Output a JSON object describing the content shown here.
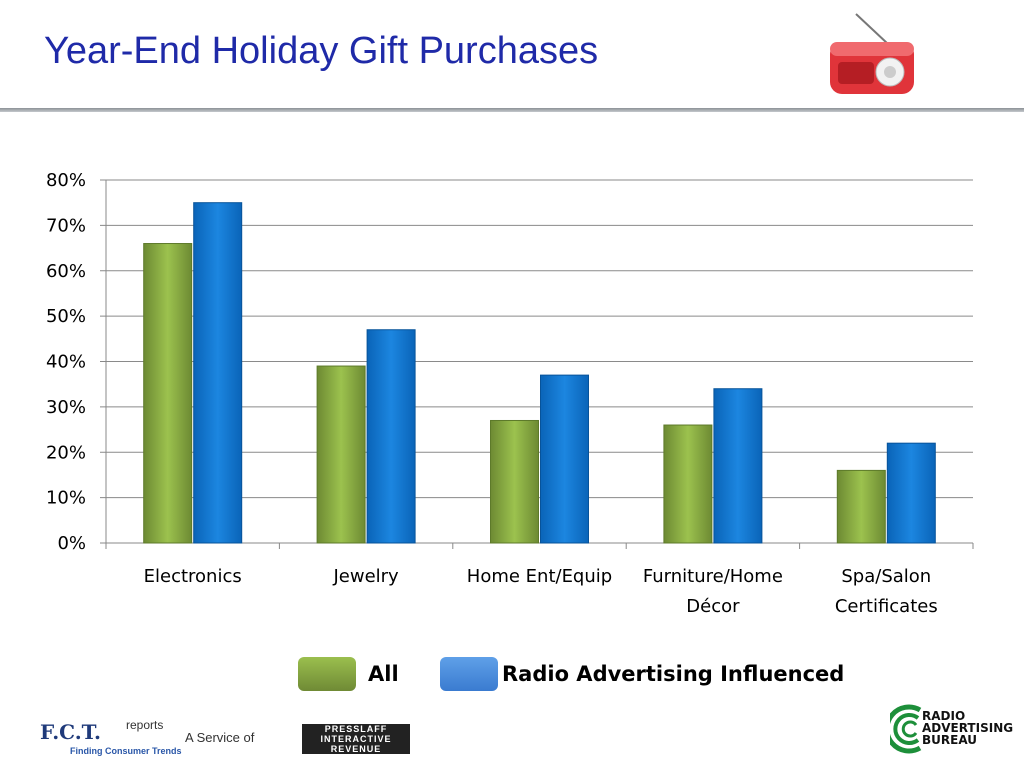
{
  "slide": {
    "title": "Year-End Holiday Gift Purchases"
  },
  "chart_data": {
    "type": "bar",
    "title": "",
    "xlabel": "",
    "ylabel": "",
    "categories": [
      [
        "Electronics"
      ],
      [
        "Jewelry"
      ],
      [
        "Home Ent/Equip"
      ],
      [
        "Furniture/Home",
        "Décor"
      ],
      [
        "Spa/Salon",
        "Certificates"
      ]
    ],
    "series": [
      {
        "name": "All",
        "values": [
          66,
          39,
          27,
          26,
          16
        ],
        "color": "#7d9c3c"
      },
      {
        "name": "Radio Advertising Influenced",
        "values": [
          75,
          47,
          37,
          34,
          22
        ],
        "color": "#0a6fc8"
      }
    ],
    "y_ticks": [
      "0%",
      "10%",
      "20%",
      "30%",
      "40%",
      "50%",
      "60%",
      "70%",
      "80%"
    ],
    "ylim": [
      0,
      80
    ],
    "grid": true,
    "legend_position": "bottom"
  },
  "footer": {
    "fct": "F.C.T.",
    "reports": "reports",
    "tagline": "Finding Consumer Trends",
    "service": "A Service of",
    "presslaff": [
      "PRESSLAFF",
      "INTERACTIVE",
      "REVENUE"
    ],
    "rab": [
      "RADIO",
      "ADVERTISING",
      "BUREAU"
    ]
  },
  "icons": {
    "radio": "retro-radio-icon"
  }
}
